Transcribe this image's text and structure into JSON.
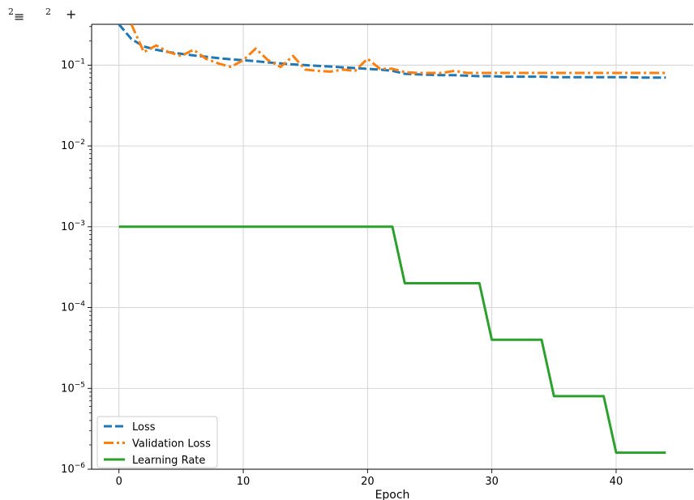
{
  "toolbar": {
    "menu_count": "2",
    "menu_icon": "menu-icon",
    "add_count": "2",
    "add_icon": "plus-icon"
  },
  "chart_data": {
    "type": "line",
    "xlabel": "Epoch",
    "ylabel": "",
    "title": "",
    "yscale": "log",
    "xlim": [
      -2.2,
      46.2
    ],
    "ylim": [
      1e-06,
      0.32
    ],
    "xticks": [
      0,
      10,
      20,
      30,
      40
    ],
    "yticks": [
      1e-06,
      1e-05,
      0.0001,
      0.001,
      0.01,
      0.1
    ],
    "ytick_exponents": [
      "−6",
      "−5",
      "−4",
      "−3",
      "−2",
      "−1"
    ],
    "grid": true,
    "legend_position": "lower-left",
    "series": [
      {
        "name": "Loss",
        "color": "#1f77b4",
        "style": "dashed",
        "x": [
          0,
          1,
          2,
          3,
          4,
          5,
          6,
          7,
          8,
          9,
          10,
          11,
          12,
          13,
          14,
          15,
          16,
          17,
          18,
          19,
          20,
          21,
          22,
          23,
          24,
          25,
          26,
          27,
          28,
          29,
          30,
          31,
          32,
          33,
          34,
          35,
          36,
          37,
          38,
          39,
          40,
          41,
          42,
          43,
          44
        ],
        "y": [
          0.32,
          0.21,
          0.17,
          0.155,
          0.145,
          0.138,
          0.132,
          0.127,
          0.122,
          0.118,
          0.115,
          0.112,
          0.108,
          0.105,
          0.102,
          0.1,
          0.098,
          0.096,
          0.094,
          0.092,
          0.09,
          0.088,
          0.085,
          0.078,
          0.077,
          0.076,
          0.075,
          0.075,
          0.074,
          0.073,
          0.073,
          0.072,
          0.072,
          0.072,
          0.072,
          0.071,
          0.071,
          0.071,
          0.071,
          0.071,
          0.071,
          0.071,
          0.07,
          0.07,
          0.07
        ]
      },
      {
        "name": "Validation Loss",
        "color": "#ff7f0e",
        "style": "dashdot",
        "x": [
          1,
          2,
          3,
          4,
          5,
          6,
          7,
          8,
          9,
          10,
          11,
          12,
          13,
          14,
          15,
          16,
          17,
          18,
          19,
          20,
          21,
          22,
          23,
          24,
          25,
          26,
          27,
          28,
          29,
          30,
          31,
          32,
          33,
          34,
          35,
          36,
          37,
          38,
          39,
          40,
          41,
          42,
          43,
          44
        ],
        "y": [
          0.32,
          0.145,
          0.175,
          0.145,
          0.13,
          0.155,
          0.12,
          0.105,
          0.095,
          0.115,
          0.16,
          0.115,
          0.095,
          0.13,
          0.088,
          0.085,
          0.083,
          0.088,
          0.085,
          0.12,
          0.09,
          0.09,
          0.082,
          0.08,
          0.08,
          0.08,
          0.085,
          0.08,
          0.08,
          0.08,
          0.08,
          0.08,
          0.08,
          0.08,
          0.08,
          0.08,
          0.08,
          0.08,
          0.08,
          0.08,
          0.08,
          0.08,
          0.08,
          0.08
        ]
      },
      {
        "name": "Learning Rate",
        "color": "#2ca02c",
        "style": "solid",
        "x": [
          0,
          22,
          23,
          29,
          30,
          34,
          35,
          39,
          40,
          44
        ],
        "y": [
          0.001,
          0.001,
          0.0002,
          0.0002,
          4e-05,
          4e-05,
          8e-06,
          8e-06,
          1.6e-06,
          1.6e-06
        ]
      }
    ]
  }
}
